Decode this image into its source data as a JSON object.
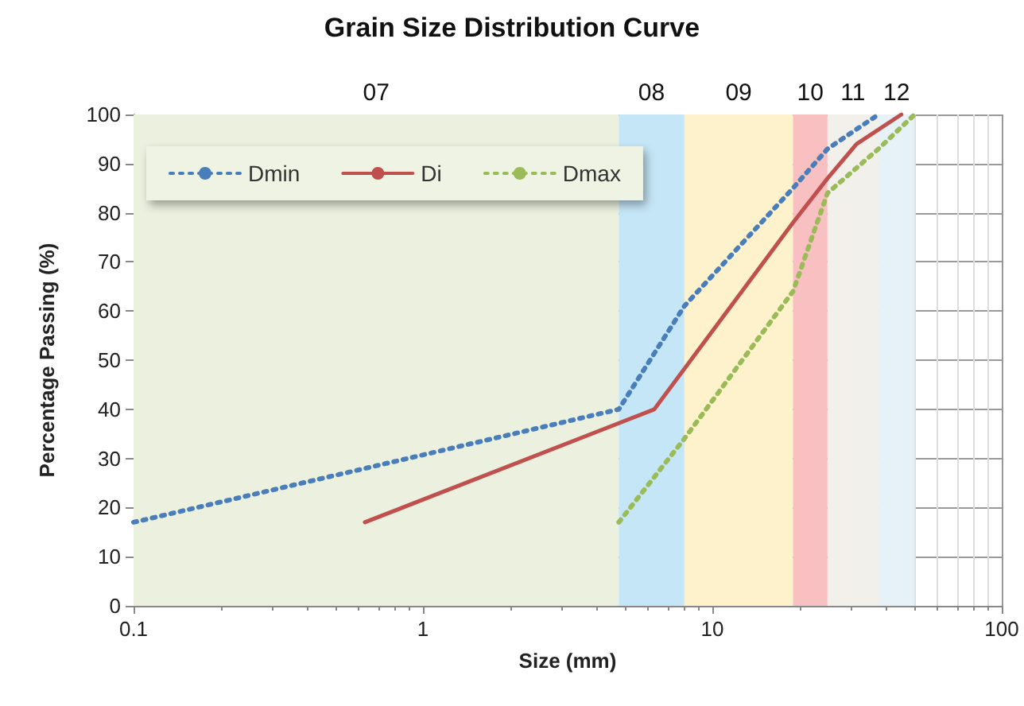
{
  "chart_data": {
    "type": "line",
    "title": "Grain Size Distribution Curve",
    "xlabel": "Size (mm)",
    "ylabel": "Percentage Passing (%)",
    "log": "x",
    "xlim": [
      0.1,
      100
    ],
    "xticks": [
      0.1,
      1,
      10,
      100
    ],
    "ylim": [
      0,
      100
    ],
    "yticks": [
      0,
      10,
      20,
      30,
      40,
      50,
      60,
      70,
      80,
      90,
      100
    ],
    "grid": true,
    "legend": "top left",
    "marker": "none",
    "series": [
      {
        "name": "Dmin",
        "color": "#4a7ebb",
        "line_style": "dotted",
        "x": [
          0.1,
          4.75,
          8,
          19,
          25,
          37.5
        ],
        "values": [
          17,
          40,
          61,
          85,
          93,
          100
        ]
      },
      {
        "name": "Di",
        "color": "#c0504d",
        "line_style": "solid",
        "x": [
          0.63,
          6.3,
          19,
          25,
          31.5,
          45
        ],
        "values": [
          17,
          40,
          78,
          87,
          94,
          100
        ]
      },
      {
        "name": "Dmax",
        "color": "#9bbb59",
        "line_style": "dotted",
        "x": [
          4.75,
          8,
          19,
          25,
          37.5,
          50
        ],
        "values": [
          17,
          34,
          64,
          84,
          93,
          100
        ]
      }
    ],
    "bands": [
      {
        "axis": "x",
        "from": 0.1,
        "to": 4.75,
        "label": "07",
        "color": "#ebf1de"
      },
      {
        "axis": "x",
        "from": 4.75,
        "to": 8,
        "label": "08",
        "color": "#c5e6f7"
      },
      {
        "axis": "x",
        "from": 8,
        "to": 19,
        "label": "09",
        "color": "#fef2cd"
      },
      {
        "axis": "x",
        "from": 19,
        "to": 25,
        "label": "10",
        "color": "#f8c0c0"
      },
      {
        "axis": "x",
        "from": 25,
        "to": 37.5,
        "label": "11",
        "color": "#f2f0ea"
      },
      {
        "axis": "x",
        "from": 37.5,
        "to": 50,
        "label": "12",
        "color": "#e6f2f8"
      }
    ]
  }
}
